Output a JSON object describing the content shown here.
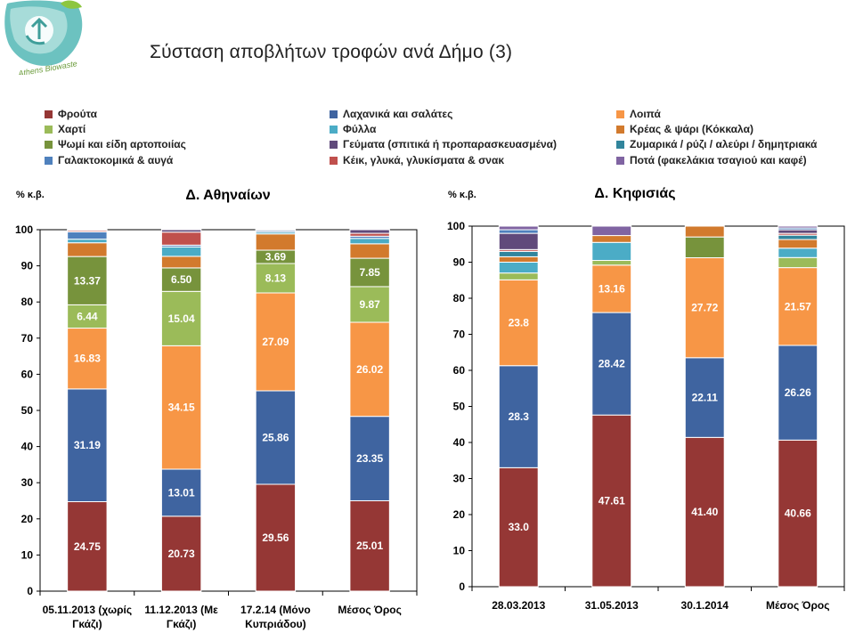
{
  "page": {
    "title": "Σύσταση αποβλήτων τροφών ανά Δήμο (3)",
    "logo_text": "Athens Biowaste"
  },
  "categories": [
    {
      "key": "fruits",
      "label": "Φρούτα",
      "color": "#953735"
    },
    {
      "key": "veg",
      "label": "Λαχανικά και σαλάτες",
      "color": "#3f64a0"
    },
    {
      "key": "other",
      "label": "Λοιπά",
      "color": "#f79646"
    },
    {
      "key": "paper",
      "label": "Χαρτί",
      "color": "#9bbb59"
    },
    {
      "key": "leaves",
      "label": "Φύλλα",
      "color": "#4bacc6"
    },
    {
      "key": "meatfish",
      "label": "Κρέας & ψάρι (Κόκκαλα)",
      "color": "#d27a2d"
    },
    {
      "key": "bread",
      "label": "Ψωμί και είδη αρτοποιίας",
      "color": "#77933c"
    },
    {
      "key": "meals",
      "label": "Γεύματα (σπιτικά ή προπαρασκευασμένα)",
      "color": "#604a7b"
    },
    {
      "key": "pasta",
      "label": "Ζυμαρικά / ρύζι / αλεύρι / δημητριακά",
      "color": "#31859c"
    },
    {
      "key": "dairy",
      "label": "Γαλακτοκομικά & αυγά",
      "color": "#4f81bd"
    },
    {
      "key": "cakes",
      "label": "Κέικ, γλυκά, γλυκίσματα & σνακ",
      "color": "#c0504d"
    },
    {
      "key": "drinks",
      "label": "Ποτά (φακελάκια τσαγιού και καφέ)",
      "color": "#8064a2"
    }
  ],
  "chart_data": [
    {
      "type": "bar",
      "stacked": true,
      "title": "Δ. Αθηναίων",
      "ylabel": "% κ.β.",
      "ylim": [
        0,
        100
      ],
      "yticks": [
        0,
        10,
        20,
        30,
        40,
        50,
        60,
        70,
        80,
        90,
        100
      ],
      "categories": [
        [
          "05.11.2013 (χωρίς",
          "Γκάζι)"
        ],
        [
          "11.12.2013 (Με",
          "Γκάζι)"
        ],
        [
          "17.2.14 (Μόνο",
          "Κυπριάδου)"
        ],
        [
          "Μέσος Όρος"
        ]
      ],
      "series": [
        {
          "key": "fruits",
          "values": [
            24.75,
            20.73,
            29.56,
            25.01
          ],
          "labels": [
            "24.75",
            "20.73",
            "29.56",
            "25.01"
          ]
        },
        {
          "key": "veg",
          "values": [
            31.19,
            13.01,
            25.86,
            23.35
          ],
          "labels": [
            "31.19",
            "13.01",
            "25.86",
            "23.35"
          ]
        },
        {
          "key": "other",
          "values": [
            16.83,
            34.15,
            27.09,
            26.02
          ],
          "labels": [
            "16.83",
            "34.15",
            "27.09",
            "26.02"
          ]
        },
        {
          "key": "paper",
          "values": [
            6.44,
            15.04,
            8.13,
            9.87
          ],
          "labels": [
            "6.44",
            "15.04",
            "8.13",
            "9.87"
          ]
        },
        {
          "key": "bread",
          "values": [
            13.37,
            6.5,
            3.69,
            7.85
          ],
          "labels": [
            "13.37",
            "6.50",
            "3.69",
            "7.85"
          ]
        },
        {
          "key": "meatfish",
          "values": [
            3.8,
            3.2,
            4.5,
            4.0
          ],
          "labels": [
            null,
            null,
            null,
            null
          ]
        },
        {
          "key": "leaves",
          "values": [
            1.0,
            2.6,
            0.5,
            1.5
          ],
          "labels": [
            null,
            null,
            null,
            null
          ]
        },
        {
          "key": "dairy",
          "values": [
            2.0,
            0.5,
            0.4,
            0.6
          ],
          "labels": [
            null,
            null,
            null,
            null
          ]
        },
        {
          "key": "cakes",
          "values": [
            0.4,
            3.6,
            0.0,
            0.8
          ],
          "labels": [
            null,
            null,
            null,
            null
          ]
        },
        {
          "key": "meals",
          "values": [
            0.22,
            0.67,
            0.27,
            1.0
          ],
          "labels": [
            null,
            null,
            null,
            null
          ]
        }
      ]
    },
    {
      "type": "bar",
      "stacked": true,
      "title": "Δ. Κηφισιάς",
      "ylabel": "% κ.β.",
      "ylim": [
        0,
        100
      ],
      "yticks": [
        0,
        10,
        20,
        30,
        40,
        50,
        60,
        70,
        80,
        90,
        100
      ],
      "categories": [
        [
          "28.03.2013"
        ],
        [
          "31.05.2013"
        ],
        [
          "30.1.2014"
        ],
        [
          "Μέσος Όρος"
        ]
      ],
      "series": [
        {
          "key": "fruits",
          "values": [
            33.0,
            47.61,
            41.4,
            40.66
          ],
          "labels": [
            "33.0",
            "47.61",
            "41.40",
            "40.66"
          ]
        },
        {
          "key": "veg",
          "values": [
            28.3,
            28.42,
            22.11,
            26.26
          ],
          "labels": [
            "28.3",
            "28.42",
            "22.11",
            "26.26"
          ]
        },
        {
          "key": "other",
          "values": [
            23.8,
            13.16,
            27.72,
            21.57
          ],
          "labels": [
            "23.8",
            "13.16",
            "27.72",
            "21.57"
          ]
        },
        {
          "key": "paper",
          "values": [
            1.9,
            1.3,
            0.0,
            2.8
          ],
          "labels": [
            null,
            null,
            null,
            null
          ]
        },
        {
          "key": "bread",
          "values": [
            0.0,
            0.0,
            5.77,
            0.0
          ],
          "labels": [
            null,
            null,
            null,
            null
          ]
        },
        {
          "key": "leaves",
          "values": [
            3.0,
            5.0,
            0.0,
            2.6
          ],
          "labels": [
            null,
            null,
            null,
            null
          ]
        },
        {
          "key": "meatfish",
          "values": [
            1.5,
            1.9,
            3.0,
            2.4
          ],
          "labels": [
            null,
            null,
            null,
            null
          ]
        },
        {
          "key": "pasta",
          "values": [
            1.5,
            0.0,
            0.0,
            1.2
          ],
          "labels": [
            null,
            null,
            null,
            null
          ]
        },
        {
          "key": "cakes",
          "values": [
            0.5,
            0.0,
            0.0,
            0.5
          ],
          "labels": [
            null,
            null,
            null,
            null
          ]
        },
        {
          "key": "meals",
          "values": [
            4.5,
            0.0,
            0.0,
            1.0
          ],
          "labels": [
            null,
            null,
            null,
            null
          ]
        },
        {
          "key": "dairy",
          "values": [
            1.0,
            0.0,
            0.0,
            0.5
          ],
          "labels": [
            null,
            null,
            null,
            null
          ]
        },
        {
          "key": "drinks",
          "values": [
            1.0,
            2.61,
            0.0,
            0.51
          ],
          "labels": [
            null,
            null,
            null,
            null
          ]
        }
      ]
    }
  ]
}
